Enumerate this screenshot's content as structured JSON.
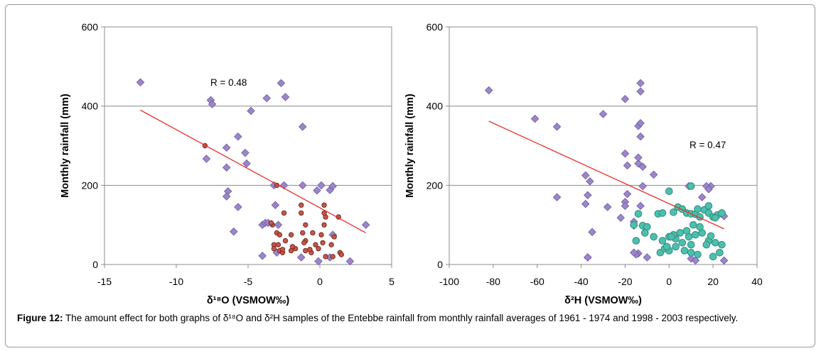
{
  "caption": {
    "label": "Figure 12:",
    "text": "The amount effect for both graphs of δ¹⁸O and δ²H samples of the Entebbe rainfall from monthly rainfall averages of 1961 - 1974 and 1998 - 2003 respectively."
  },
  "chart_data": [
    {
      "type": "scatter",
      "xlabel": "δ¹⁸O (VSMOW‰)",
      "ylabel": "Monthly rainfall (mm)",
      "xlim": [
        -15,
        5
      ],
      "ylim": [
        0,
        600
      ],
      "xticks": [
        "-15",
        "-10",
        "-5",
        "0",
        "5"
      ],
      "yticks": [
        "0",
        "200",
        "400",
        "600"
      ],
      "grid": "horizontal",
      "annotation": "R = 0.48",
      "trendline": {
        "x": [
          -12.5,
          3.2
        ],
        "y": [
          390,
          80
        ],
        "color": "#e8322e"
      },
      "series": [
        {
          "marker": "diamond",
          "fill": "#9b86c9",
          "stroke": "#6f5aa5",
          "x": [
            -12.5,
            -7.6,
            -7.5,
            -4.8,
            -3.7,
            -2.7,
            -2.4,
            -1.2,
            -5.7,
            -6.5,
            -7.9,
            -5.2,
            -5.1,
            -6.5,
            -6.4,
            -6.5,
            -5.7,
            -6.0,
            -4.0,
            -3.8,
            -3.6,
            -3.2,
            -3.1,
            -3.0,
            -2.5,
            -1.2,
            0.1,
            0.7,
            0.9,
            -0.2,
            -2.9,
            -4.0,
            -1.3,
            -0.1,
            0.7,
            2.1,
            3.2,
            0.9
          ],
          "y": [
            460,
            415,
            405,
            388,
            420,
            458,
            423,
            348,
            323,
            295,
            267,
            282,
            255,
            245,
            185,
            172,
            145,
            83,
            100,
            105,
            105,
            200,
            150,
            30,
            200,
            200,
            200,
            188,
            198,
            187,
            100,
            22,
            18,
            8,
            18,
            8,
            100,
            75
          ]
        },
        {
          "marker": "circle",
          "fill": "#c4574a",
          "stroke": "#7a2a22",
          "x": [
            -8.0,
            -3.0,
            -2.5,
            -1.3,
            -3.3,
            -3.0,
            -2.8,
            -2.0,
            -1.2,
            -0.5,
            0.1,
            0.3,
            0.4,
            1.0,
            1.3,
            -3.2,
            -2.9,
            -2.4,
            -1.0,
            -0.3,
            0.2,
            0.8,
            -3.2,
            -2.8,
            -2.6,
            -2.0,
            -1.7,
            -1.0,
            -0.6,
            -0.1,
            0.4,
            0.9,
            -2.6,
            -1.9,
            -1.1,
            -0.7,
            0.3,
            1.4,
            1.5,
            -3.4,
            -1.3,
            0.3,
            -1.0
          ],
          "y": [
            300,
            200,
            130,
            130,
            100,
            80,
            75,
            75,
            80,
            80,
            75,
            100,
            120,
            70,
            120,
            50,
            50,
            60,
            60,
            50,
            55,
            50,
            40,
            35,
            30,
            35,
            40,
            35,
            30,
            40,
            20,
            20,
            38,
            45,
            55,
            38,
            130,
            30,
            25,
            105,
            150,
            150,
            100
          ]
        }
      ]
    },
    {
      "type": "scatter",
      "xlabel": "δ²H (VSMOW‰)",
      "ylabel": "Monthly rainfall (mm)",
      "xlim": [
        -100,
        40
      ],
      "ylim": [
        0,
        600
      ],
      "xticks": [
        "-100",
        "-80",
        "-60",
        "-40",
        "-20",
        "0",
        "20",
        "40"
      ],
      "yticks": [
        "0",
        "200",
        "400",
        "600"
      ],
      "grid": "horizontal",
      "annotation": "R = 0.47",
      "trendline": {
        "x": [
          -82,
          25
        ],
        "y": [
          362,
          90
        ],
        "color": "#e8322e"
      },
      "series": [
        {
          "marker": "diamond",
          "fill": "#9b86c9",
          "stroke": "#6f5aa5",
          "x": [
            -82,
            -61,
            -51,
            -30,
            -20,
            -13,
            -13,
            -14,
            -13,
            -13,
            -20,
            -19,
            -14,
            -14,
            -12,
            -7,
            -38,
            -36,
            -19,
            -20,
            -20,
            -12,
            -13,
            -51,
            -37,
            -28,
            -38,
            -37,
            -22,
            -16,
            -16,
            -14,
            -35,
            -12,
            -15,
            -16,
            -37,
            -10,
            9,
            19,
            17,
            18,
            15,
            24,
            25,
            23,
            25,
            10,
            12
          ],
          "y": [
            440,
            368,
            348,
            380,
            418,
            458,
            437,
            350,
            357,
            323,
            280,
            250,
            255,
            270,
            247,
            227,
            225,
            210,
            178,
            158,
            148,
            198,
            148,
            170,
            175,
            145,
            153,
            18,
            118,
            108,
            98,
            28,
            82,
            98,
            25,
            30,
            18,
            18,
            198,
            198,
            198,
            190,
            170,
            130,
            122,
            30,
            10,
            15,
            10
          ]
        },
        {
          "marker": "circle",
          "fill": "#4dbfac",
          "stroke": "#2f8e80",
          "x": [
            -15,
            -14,
            -16,
            -12,
            -10,
            -11,
            -7,
            -5,
            -3,
            0,
            2,
            4,
            6,
            8,
            10,
            12,
            14,
            16,
            18,
            20,
            22,
            24,
            0,
            3,
            6,
            9,
            12,
            15,
            18,
            21,
            24,
            -4,
            -2,
            0,
            3,
            7,
            10,
            13,
            17,
            20,
            23,
            -3,
            -1,
            2,
            5,
            8,
            11,
            14,
            10,
            13,
            1,
            10,
            18,
            19,
            21
          ],
          "y": [
            60,
            128,
            100,
            98,
            95,
            80,
            70,
            128,
            130,
            185,
            132,
            145,
            140,
            130,
            128,
            127,
            120,
            138,
            130,
            120,
            125,
            130,
            70,
            65,
            55,
            70,
            75,
            80,
            60,
            55,
            50,
            30,
            40,
            35,
            45,
            35,
            30,
            25,
            50,
            20,
            30,
            60,
            45,
            75,
            80,
            85,
            100,
            95,
            198,
            140,
            70,
            50,
            148,
            72,
            118
          ]
        }
      ]
    }
  ]
}
